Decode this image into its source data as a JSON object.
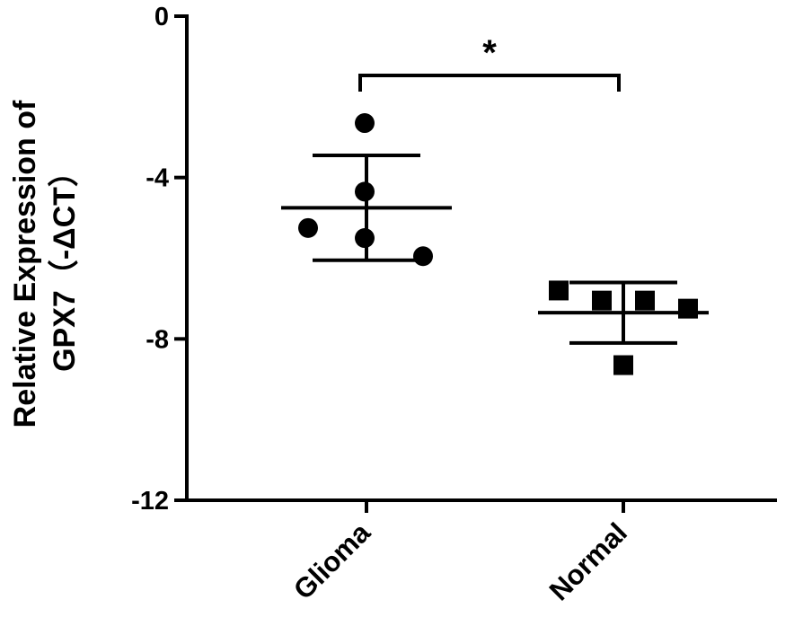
{
  "chart_data": {
    "type": "scatter",
    "ylabel": "Relative Expression of",
    "ylabel_line2": "GPX7（-ΔCT）",
    "categories": [
      "Glioma",
      "Normal"
    ],
    "ylim": [
      -12,
      0
    ],
    "yticks": [
      0,
      -4,
      -8,
      -12
    ],
    "ytick_labels": [
      "0",
      "-4",
      "-8",
      "-12"
    ],
    "series": [
      {
        "category": "Glioma",
        "marker": "circle",
        "mean": -4.75,
        "error_upper": -3.45,
        "error_lower": -6.05,
        "points": [
          -2.65,
          -4.35,
          -5.25,
          -5.5,
          -5.95
        ]
      },
      {
        "category": "Normal",
        "marker": "square",
        "mean": -7.35,
        "error_upper": -6.6,
        "error_lower": -8.1,
        "points": [
          -6.8,
          -7.05,
          -7.05,
          -7.25,
          -8.65
        ]
      }
    ],
    "significance": {
      "between": [
        "Glioma",
        "Normal"
      ],
      "label": "*"
    },
    "grid": false,
    "legend": "none"
  }
}
